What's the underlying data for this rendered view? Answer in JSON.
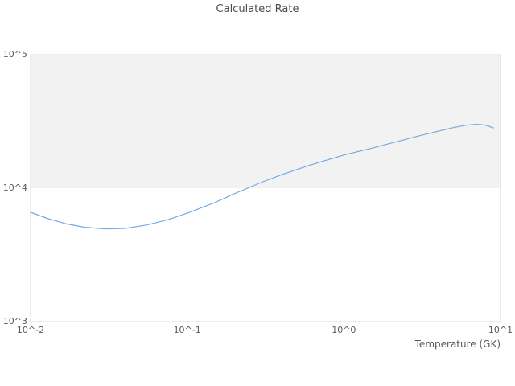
{
  "title": "Calculated Rate",
  "colors": {
    "line": "#74abe2",
    "alternate_band": "#f2f2f2",
    "plot_border": "#d9d9d9",
    "title_text": "#4d4d4d",
    "tick_text": "#595959"
  },
  "chart_data": {
    "type": "line",
    "title": "Calculated Rate",
    "xlabel": "Temperature (GK)",
    "ylabel": "",
    "xscale": "log",
    "yscale": "log",
    "xlim": [
      0.01,
      10
    ],
    "ylim": [
      1000,
      100000
    ],
    "x_ticks": [
      0.01,
      0.1,
      1,
      10
    ],
    "x_tick_labels": [
      "10^-2",
      "10^-1",
      "10^0",
      "10^1"
    ],
    "y_ticks": [
      1000,
      10000,
      100000
    ],
    "y_tick_labels": [
      "10^3",
      "10^4",
      "10^5"
    ],
    "grid": false,
    "legend": false,
    "alternate_band": {
      "y_from": 10000,
      "y_to": 100000
    },
    "series": [
      {
        "name": "Calculated Rate",
        "x": [
          0.01,
          0.013,
          0.017,
          0.022,
          0.03,
          0.04,
          0.055,
          0.075,
          0.1,
          0.15,
          0.2,
          0.3,
          0.4,
          0.6,
          0.8,
          1.0,
          1.5,
          2.0,
          3.0,
          4.0,
          5.0,
          6.0,
          7.0,
          8.0,
          9.0
        ],
        "y": [
          6600,
          5900,
          5400,
          5100,
          4950,
          5000,
          5300,
          5800,
          6500,
          7800,
          9100,
          11100,
          12600,
          14800,
          16400,
          17700,
          19900,
          21700,
          24600,
          26700,
          28400,
          29600,
          30100,
          29700,
          28300
        ]
      }
    ]
  }
}
